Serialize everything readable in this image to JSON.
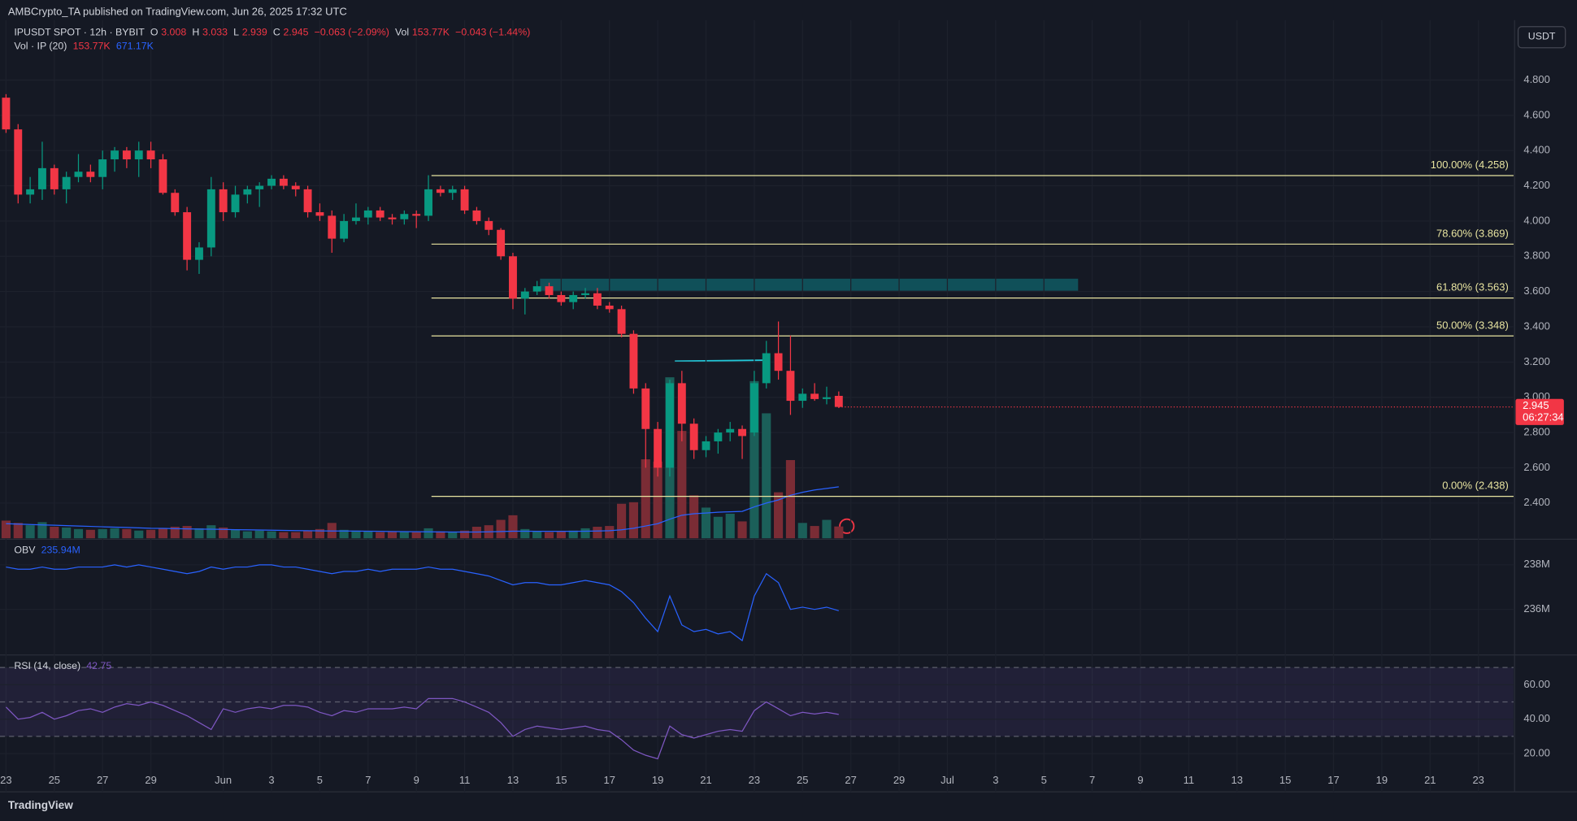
{
  "header": {
    "publisher": "AMBCrypto_TA published on TradingView.com, Jun 26, 2025 17:32 UTC",
    "currency": "USDT",
    "logo": "TradingView"
  },
  "chart_data": {
    "type": "candlestick",
    "title": "IPUSDT SPOT · 12h · BYBIT",
    "legend": {
      "o": "O",
      "h": "H",
      "l": "L",
      "c": "C",
      "change": "−0.063 (−2.09%)",
      "vol": "Vol",
      "vol_value": "153.77K",
      "vol_change": "−0.043 (−1.44%)"
    },
    "up_color": "#089981",
    "down_color": "#f23645",
    "volume_up_color": "#1b5f59",
    "volume_down_color": "#7a2c35",
    "x": [
      "2025-05-23 00:00",
      "2025-05-23 12:00",
      "2025-05-24 00:00",
      "2025-05-24 12:00",
      "2025-05-25 00:00",
      "2025-05-25 12:00",
      "2025-05-26 00:00",
      "2025-05-26 12:00",
      "2025-05-27 00:00",
      "2025-05-27 12:00",
      "2025-05-28 00:00",
      "2025-05-28 12:00",
      "2025-05-29 00:00",
      "2025-05-29 12:00",
      "2025-05-30 00:00",
      "2025-05-30 12:00",
      "2025-05-31 00:00",
      "2025-05-31 12:00",
      "2025-06-01 00:00",
      "2025-06-01 12:00",
      "2025-06-02 00:00",
      "2025-06-02 12:00",
      "2025-06-03 00:00",
      "2025-06-03 12:00",
      "2025-06-04 00:00",
      "2025-06-04 12:00",
      "2025-06-05 00:00",
      "2025-06-05 12:00",
      "2025-06-06 00:00",
      "2025-06-06 12:00",
      "2025-06-07 00:00",
      "2025-06-07 12:00",
      "2025-06-08 00:00",
      "2025-06-08 12:00",
      "2025-06-09 00:00",
      "2025-06-09 12:00",
      "2025-06-10 00:00",
      "2025-06-10 12:00",
      "2025-06-11 00:00",
      "2025-06-11 12:00",
      "2025-06-12 00:00",
      "2025-06-12 12:00",
      "2025-06-13 00:00",
      "2025-06-13 12:00",
      "2025-06-14 00:00",
      "2025-06-14 12:00",
      "2025-06-15 00:00",
      "2025-06-15 12:00",
      "2025-06-16 00:00",
      "2025-06-16 12:00",
      "2025-06-17 00:00",
      "2025-06-17 12:00",
      "2025-06-18 00:00",
      "2025-06-18 12:00",
      "2025-06-19 00:00",
      "2025-06-19 12:00",
      "2025-06-20 00:00",
      "2025-06-20 12:00",
      "2025-06-21 00:00",
      "2025-06-21 12:00",
      "2025-06-22 00:00",
      "2025-06-22 12:00",
      "2025-06-23 00:00",
      "2025-06-23 12:00",
      "2025-06-24 00:00",
      "2025-06-24 12:00",
      "2025-06-25 00:00",
      "2025-06-25 12:00",
      "2025-06-26 00:00",
      "2025-06-26 12:00"
    ],
    "open": [
      4.7,
      4.52,
      4.15,
      4.18,
      4.3,
      4.18,
      4.25,
      4.28,
      4.25,
      4.35,
      4.4,
      4.35,
      4.4,
      4.35,
      4.16,
      4.05,
      3.78,
      3.85,
      4.18,
      4.05,
      4.15,
      4.18,
      4.2,
      4.24,
      4.2,
      4.18,
      4.05,
      4.03,
      3.9,
      4.0,
      4.02,
      4.06,
      4.02,
      4.01,
      4.04,
      4.03,
      4.18,
      4.16,
      4.18,
      4.06,
      4.0,
      3.95,
      3.8,
      3.56,
      3.6,
      3.63,
      3.58,
      3.54,
      3.58,
      3.59,
      3.52,
      3.5,
      3.36,
      3.05,
      2.82,
      2.6,
      3.08,
      2.85,
      2.7,
      2.75,
      2.8,
      2.82,
      2.8,
      3.08,
      3.25,
      3.15,
      2.98,
      3.02,
      2.99,
      3.008
    ],
    "high": [
      4.72,
      4.55,
      4.25,
      4.45,
      4.32,
      4.28,
      4.38,
      4.32,
      4.4,
      4.42,
      4.42,
      4.45,
      4.45,
      4.38,
      4.18,
      4.08,
      3.88,
      4.25,
      4.22,
      4.2,
      4.2,
      4.22,
      4.26,
      4.26,
      4.22,
      4.2,
      4.1,
      4.06,
      4.04,
      4.1,
      4.08,
      4.08,
      4.04,
      4.06,
      4.06,
      4.26,
      4.2,
      4.2,
      4.2,
      4.08,
      4.02,
      3.96,
      3.82,
      3.62,
      3.66,
      3.65,
      3.6,
      3.6,
      3.62,
      3.62,
      3.54,
      3.52,
      3.38,
      3.08,
      2.86,
      3.1,
      3.15,
      2.88,
      2.78,
      2.82,
      2.86,
      2.84,
      3.15,
      3.32,
      3.43,
      3.35,
      3.05,
      3.08,
      3.06,
      3.033
    ],
    "low": [
      4.5,
      4.1,
      4.1,
      4.12,
      4.15,
      4.1,
      4.22,
      4.22,
      4.18,
      4.28,
      4.3,
      4.25,
      4.3,
      4.15,
      4.03,
      3.72,
      3.7,
      3.8,
      4.0,
      4.02,
      4.1,
      4.08,
      4.18,
      4.18,
      4.14,
      4.02,
      4.0,
      3.82,
      3.88,
      3.98,
      3.98,
      4.0,
      3.98,
      3.98,
      3.96,
      4.0,
      4.14,
      4.12,
      4.04,
      3.98,
      3.92,
      3.78,
      3.5,
      3.47,
      3.58,
      3.56,
      3.52,
      3.5,
      3.56,
      3.5,
      3.48,
      3.34,
      3.02,
      2.6,
      2.55,
      2.55,
      2.75,
      2.65,
      2.66,
      2.68,
      2.75,
      2.65,
      2.78,
      3.05,
      3.1,
      2.9,
      2.94,
      2.98,
      2.96,
      2.939
    ],
    "close": [
      4.52,
      4.15,
      4.18,
      4.3,
      4.18,
      4.25,
      4.28,
      4.25,
      4.35,
      4.4,
      4.35,
      4.4,
      4.35,
      4.16,
      4.05,
      3.78,
      3.85,
      4.18,
      4.05,
      4.15,
      4.18,
      4.2,
      4.24,
      4.2,
      4.18,
      4.05,
      4.03,
      3.9,
      4.0,
      4.02,
      4.06,
      4.02,
      4.01,
      4.04,
      4.03,
      4.18,
      4.16,
      4.18,
      4.06,
      4.0,
      3.95,
      3.8,
      3.56,
      3.6,
      3.63,
      3.58,
      3.54,
      3.58,
      3.59,
      3.52,
      3.5,
      3.36,
      3.05,
      2.82,
      2.6,
      3.08,
      2.85,
      2.7,
      2.75,
      2.8,
      2.82,
      2.78,
      3.08,
      3.25,
      3.15,
      2.98,
      3.02,
      2.99,
      3.0,
      2.945
    ],
    "volume": {
      "name": "Vol · IP (20)",
      "values": [
        230,
        200,
        170,
        210,
        150,
        140,
        120,
        110,
        120,
        130,
        120,
        100,
        110,
        130,
        150,
        160,
        130,
        170,
        140,
        110,
        90,
        100,
        90,
        80,
        80,
        100,
        120,
        200,
        110,
        100,
        90,
        80,
        90,
        90,
        80,
        130,
        90,
        80,
        100,
        150,
        170,
        240,
        300,
        120,
        90,
        80,
        90,
        100,
        130,
        150,
        160,
        450,
        470,
        1030,
        1000,
        2100,
        1400,
        560,
        400,
        280,
        320,
        220,
        2050,
        1630,
        600,
        1020,
        200,
        160,
        240,
        153.77
      ]
    },
    "volume_ma": {
      "color": "#2962ff",
      "legend_value": "671.17K",
      "values": [
        190,
        185,
        180,
        175,
        170,
        165,
        160,
        155,
        150,
        145,
        140,
        135,
        130,
        128,
        125,
        122,
        120,
        118,
        115,
        112,
        110,
        108,
        105,
        103,
        100,
        98,
        96,
        95,
        94,
        93,
        92,
        90,
        88,
        86,
        85,
        84,
        83,
        82,
        82,
        82,
        84,
        88,
        92,
        92,
        90,
        90,
        90,
        90,
        92,
        95,
        98,
        110,
        130,
        160,
        190,
        250,
        300,
        320,
        330,
        340,
        345,
        350,
        410,
        460,
        500,
        560,
        600,
        630,
        650,
        671.17
      ]
    },
    "xlim": [
      "2025-05-22 18:00",
      "2025-07-24 11:00"
    ],
    "xticks": [
      {
        "value": "2025-05-23",
        "label": "23"
      },
      {
        "value": "2025-05-25",
        "label": "25"
      },
      {
        "value": "2025-05-27",
        "label": "27"
      },
      {
        "value": "2025-05-29",
        "label": "29"
      },
      {
        "value": "2025-06-01",
        "label": "Jun"
      },
      {
        "value": "2025-06-03",
        "label": "3"
      },
      {
        "value": "2025-06-05",
        "label": "5"
      },
      {
        "value": "2025-06-07",
        "label": "7"
      },
      {
        "value": "2025-06-09",
        "label": "9"
      },
      {
        "value": "2025-06-11",
        "label": "11"
      },
      {
        "value": "2025-06-13",
        "label": "13"
      },
      {
        "value": "2025-06-15",
        "label": "15"
      },
      {
        "value": "2025-06-17",
        "label": "17"
      },
      {
        "value": "2025-06-19",
        "label": "19"
      },
      {
        "value": "2025-06-21",
        "label": "21"
      },
      {
        "value": "2025-06-23",
        "label": "23"
      },
      {
        "value": "2025-06-25",
        "label": "25"
      },
      {
        "value": "2025-06-27",
        "label": "27"
      },
      {
        "value": "2025-06-29",
        "label": "29"
      },
      {
        "value": "2025-07-01",
        "label": "Jul"
      },
      {
        "value": "2025-07-03",
        "label": "3"
      },
      {
        "value": "2025-07-05",
        "label": "5"
      },
      {
        "value": "2025-07-07",
        "label": "7"
      },
      {
        "value": "2025-07-09",
        "label": "9"
      },
      {
        "value": "2025-07-11",
        "label": "11"
      },
      {
        "value": "2025-07-13",
        "label": "13"
      },
      {
        "value": "2025-07-15",
        "label": "15"
      },
      {
        "value": "2025-07-17",
        "label": "17"
      },
      {
        "value": "2025-07-19",
        "label": "19"
      },
      {
        "value": "2025-07-21",
        "label": "21"
      },
      {
        "value": "2025-07-23",
        "label": "23"
      }
    ],
    "ylim": [
      2.2,
      5.14
    ],
    "yticks": [
      {
        "value": 2.4,
        "label": "2.400"
      },
      {
        "value": 2.6,
        "label": "2.600"
      },
      {
        "value": 2.8,
        "label": "2.800"
      },
      {
        "value": 3.0,
        "label": "3.000"
      },
      {
        "value": 3.2,
        "label": "3.200"
      },
      {
        "value": 3.4,
        "label": "3.400"
      },
      {
        "value": 3.6,
        "label": "3.600"
      },
      {
        "value": 3.8,
        "label": "3.800"
      },
      {
        "value": 4.0,
        "label": "4.000"
      },
      {
        "value": 4.2,
        "label": "4.200"
      },
      {
        "value": 4.4,
        "label": "4.400"
      },
      {
        "value": 4.6,
        "label": "4.600"
      },
      {
        "value": 4.8,
        "label": "4.800"
      }
    ],
    "fib_levels": [
      {
        "value": 4.258,
        "label": "100.00% (4.258)"
      },
      {
        "value": 3.869,
        "label": "78.60% (3.869)"
      },
      {
        "value": 3.563,
        "label": "61.80% (3.563)"
      },
      {
        "value": 3.348,
        "label": "50.00% (3.348)"
      },
      {
        "value": 2.438,
        "label": "0.00% (2.438)"
      }
    ],
    "fib_color": "#e8e4a0",
    "countdown": "06:27:34",
    "obv": {
      "name": "OBV",
      "color": "#2962ff",
      "legend_value": "235.94M",
      "ylim": [
        234,
        239.1
      ],
      "yticks": [
        {
          "value": 236,
          "label": "236M"
        },
        {
          "value": 238,
          "label": "238M"
        }
      ],
      "values": [
        237.9,
        237.8,
        237.8,
        237.9,
        237.8,
        237.8,
        237.9,
        237.9,
        237.9,
        238.0,
        237.9,
        238.0,
        237.9,
        237.8,
        237.7,
        237.6,
        237.7,
        237.9,
        237.8,
        237.9,
        237.9,
        238.0,
        238.0,
        237.9,
        237.9,
        237.8,
        237.7,
        237.6,
        237.7,
        237.7,
        237.8,
        237.7,
        237.8,
        237.8,
        237.8,
        237.9,
        237.8,
        237.8,
        237.7,
        237.6,
        237.5,
        237.3,
        237.1,
        237.2,
        237.2,
        237.1,
        237.1,
        237.2,
        237.3,
        237.2,
        237.1,
        236.8,
        236.3,
        235.6,
        235.0,
        236.6,
        235.3,
        235.0,
        235.1,
        234.9,
        235.0,
        234.6,
        236.6,
        237.6,
        237.2,
        236.0,
        236.1,
        236.0,
        236.1,
        235.94
      ]
    },
    "rsi": {
      "name": "RSI (14, close)",
      "color": "#7e57c2",
      "ylim": [
        -1.6,
        76.7
      ],
      "bands": [
        70,
        50,
        30
      ],
      "yticks": [
        {
          "value": 20,
          "label": "20.00"
        },
        {
          "value": 40,
          "label": "40.00"
        },
        {
          "value": 60,
          "label": "60.00"
        }
      ],
      "values": [
        47,
        40,
        41,
        44,
        40,
        42,
        45,
        46,
        44,
        47,
        49,
        48,
        50,
        48,
        45,
        42,
        38,
        34,
        46,
        44,
        46,
        47,
        46,
        48,
        48,
        47,
        44,
        42,
        45,
        44,
        46,
        46,
        46,
        47,
        46,
        52,
        52,
        52,
        50,
        47,
        44,
        38,
        30,
        34,
        36,
        35,
        34,
        35,
        36,
        34,
        33,
        28,
        22,
        19,
        17,
        36,
        31,
        29,
        31,
        33,
        34,
        33,
        45,
        50,
        46,
        42,
        44,
        43,
        44,
        42.75
      ]
    }
  }
}
